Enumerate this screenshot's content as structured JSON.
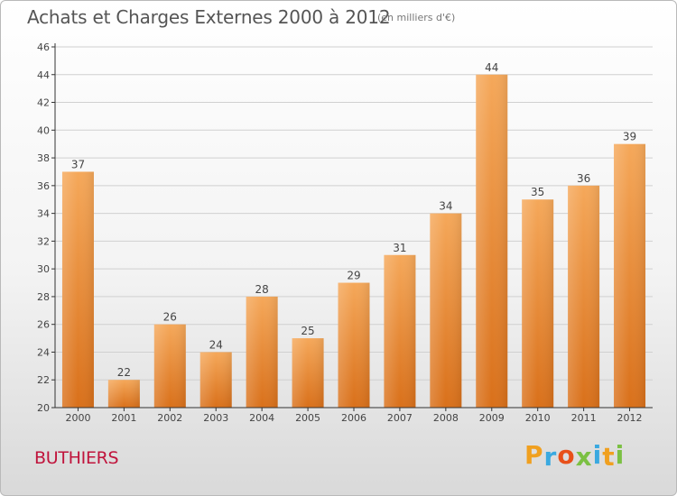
{
  "header": {
    "title": "Achats et Charges Externes 2000 à 2012",
    "subtitle": "(en milliers d'€)"
  },
  "footer": {
    "location": "BUTHIERS",
    "logo_text": "Proxiti",
    "logo_letters": [
      {
        "char": "P",
        "color": "#f0a020"
      },
      {
        "char": "r",
        "color": "#3aa9e0"
      },
      {
        "char": "o",
        "color": "#e8501a"
      },
      {
        "char": "x",
        "color": "#7bc043"
      },
      {
        "char": "i",
        "color": "#3aa9e0"
      },
      {
        "char": "t",
        "color": "#f0a020"
      },
      {
        "char": "i",
        "color": "#7bc043"
      }
    ]
  },
  "chart_data": {
    "type": "bar",
    "title": "Achats et Charges Externes 2000 à 2012",
    "subtitle": "(en milliers d'€)",
    "xlabel": "",
    "ylabel": "",
    "categories": [
      "2000",
      "2001",
      "2002",
      "2003",
      "2004",
      "2005",
      "2006",
      "2007",
      "2008",
      "2009",
      "2010",
      "2011",
      "2012"
    ],
    "values": [
      37,
      22,
      26,
      24,
      28,
      25,
      29,
      31,
      34,
      44,
      35,
      36,
      39
    ],
    "ylim": [
      20,
      46
    ],
    "yticks": [
      20,
      22,
      24,
      26,
      28,
      30,
      32,
      34,
      36,
      38,
      40,
      42,
      44,
      46
    ],
    "grid": true,
    "legend": "none",
    "colors": {
      "bar_top": "#f5a85a",
      "bar_bottom": "#d9701a",
      "grid": "#d0d0d0",
      "axis": "#333333"
    }
  }
}
